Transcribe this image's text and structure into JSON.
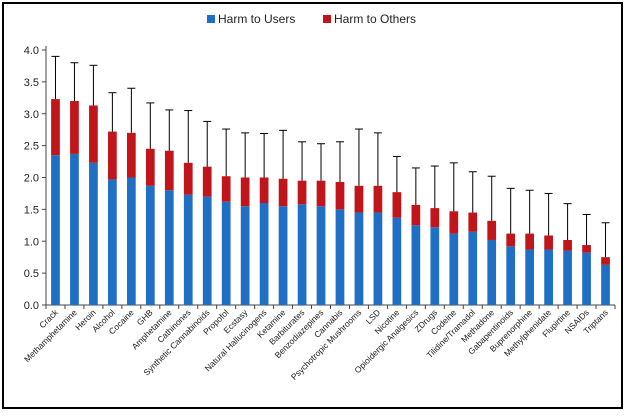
{
  "chart_data": {
    "type": "bar",
    "stacked": true,
    "title": "",
    "xlabel": "",
    "ylabel": "",
    "ylim": [
      0,
      4.0
    ],
    "yticks": [
      "0.0",
      "0.5",
      "1.0",
      "1.5",
      "2.0",
      "2.5",
      "3.0",
      "3.5",
      "4.0"
    ],
    "legend_position": "top-center",
    "categories": [
      "Crack",
      "Methamphetamine",
      "Heroin",
      "Alcohol",
      "Cocaine",
      "GHB",
      "Amphetamine",
      "Cathinones",
      "Synthetic Cannabinoids",
      "Propofol",
      "Ecstasy",
      "Natural Hallucinogens",
      "Ketamine",
      "Barbiturates",
      "Benzodiazepines",
      "Cannabis",
      "Psychotropic Mushrooms",
      "LSD",
      "Nicotine",
      "Opioidergic Analgesics",
      "ZDrugs",
      "Codeine",
      "Tilidine/Tramadol",
      "Methadone",
      "Gabapentinoids",
      "Buprenorphine",
      "Methylphenidate",
      "Flupirtine",
      "NSAIDs",
      "Triptans"
    ],
    "series": [
      {
        "name": "Harm to Users",
        "color": "#1F6FC5",
        "values": [
          2.35,
          2.37,
          2.23,
          1.97,
          2.0,
          1.87,
          1.8,
          1.73,
          1.7,
          1.62,
          1.55,
          1.6,
          1.55,
          1.58,
          1.55,
          1.5,
          1.45,
          1.45,
          1.37,
          1.25,
          1.22,
          1.12,
          1.15,
          1.02,
          0.92,
          0.87,
          0.87,
          0.85,
          0.82,
          0.63
        ]
      },
      {
        "name": "Harm to Others",
        "color": "#C0151B",
        "values": [
          0.88,
          0.83,
          0.9,
          0.75,
          0.7,
          0.58,
          0.62,
          0.5,
          0.47,
          0.4,
          0.45,
          0.4,
          0.43,
          0.37,
          0.4,
          0.43,
          0.42,
          0.42,
          0.4,
          0.32,
          0.3,
          0.35,
          0.3,
          0.3,
          0.2,
          0.25,
          0.22,
          0.17,
          0.12,
          0.12
        ]
      }
    ],
    "error_upper": [
      3.9,
      3.8,
      3.76,
      3.33,
      3.4,
      3.17,
      3.06,
      3.05,
      2.88,
      2.76,
      2.7,
      2.69,
      2.74,
      2.56,
      2.53,
      2.56,
      2.76,
      2.7,
      2.33,
      2.15,
      2.18,
      2.23,
      2.09,
      2.02,
      1.83,
      1.8,
      1.75,
      1.59,
      1.42,
      1.29
    ]
  }
}
